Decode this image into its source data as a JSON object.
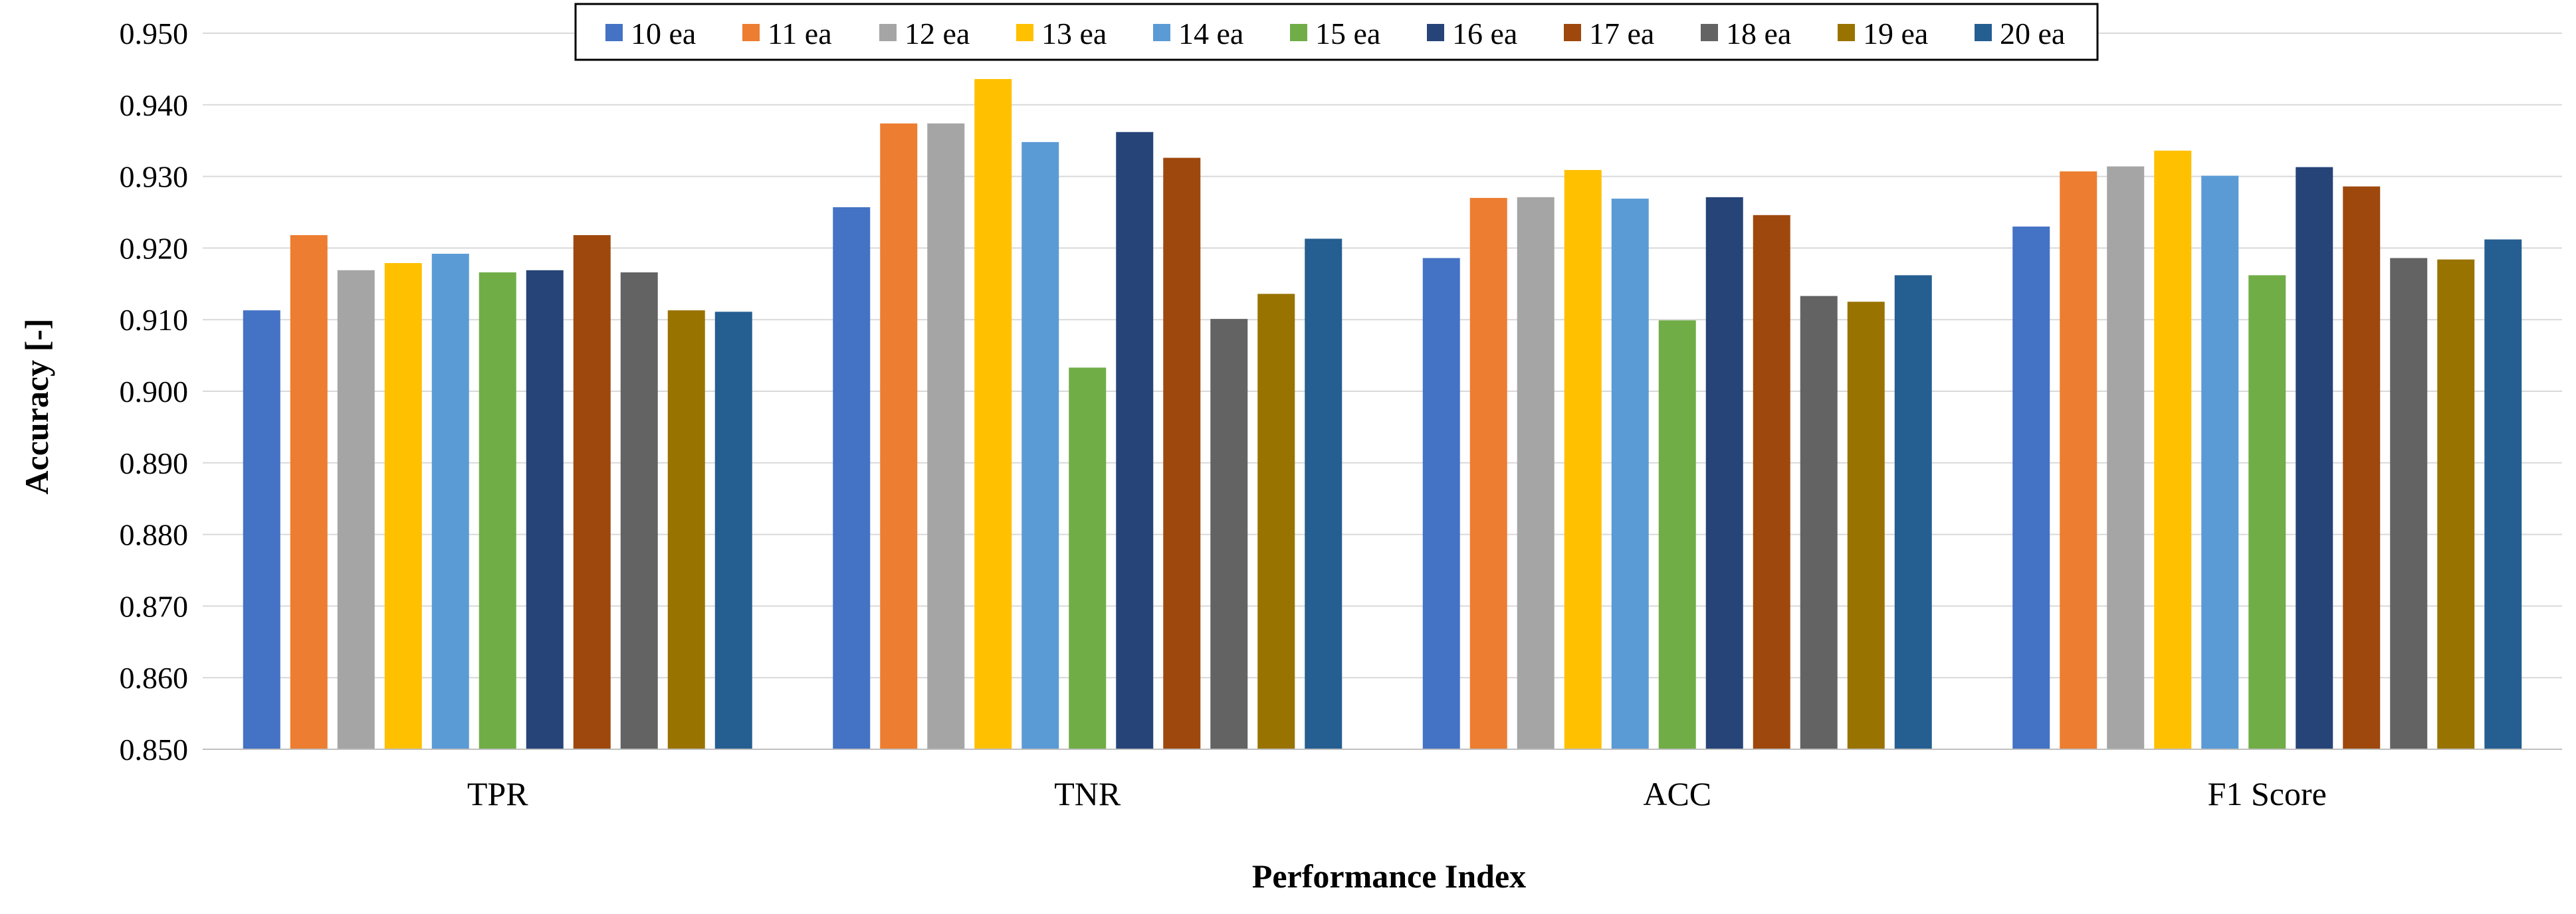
{
  "chart_data": {
    "type": "bar",
    "title": "",
    "xlabel": "Performance Index",
    "ylabel": "Accuracy [-]",
    "ylim": [
      0.85,
      0.95
    ],
    "ytick_step": 0.01,
    "ytick_format_decimals": 3,
    "grid": true,
    "legend_position": "top-center",
    "categories": [
      "TPR",
      "TNR",
      "ACC",
      "F1 Score"
    ],
    "series": [
      {
        "name": "10 ea",
        "color": "#4472C4",
        "values": [
          0.9113,
          0.9257,
          0.9186,
          0.923
        ]
      },
      {
        "name": "11 ea",
        "color": "#ED7D31",
        "values": [
          0.9218,
          0.9374,
          0.927,
          0.9307
        ]
      },
      {
        "name": "12 ea",
        "color": "#A5A5A5",
        "values": [
          0.9169,
          0.9374,
          0.9271,
          0.9314
        ]
      },
      {
        "name": "13 ea",
        "color": "#FFC000",
        "values": [
          0.9179,
          0.9436,
          0.9309,
          0.9336
        ]
      },
      {
        "name": "14 ea",
        "color": "#5B9BD5",
        "values": [
          0.9192,
          0.9348,
          0.9269,
          0.9301
        ]
      },
      {
        "name": "15 ea",
        "color": "#70AD47",
        "values": [
          0.9166,
          0.9033,
          0.9099,
          0.9162
        ]
      },
      {
        "name": "16 ea",
        "color": "#264478",
        "values": [
          0.9169,
          0.9362,
          0.9271,
          0.9313
        ]
      },
      {
        "name": "17 ea",
        "color": "#9E480E",
        "values": [
          0.9218,
          0.9326,
          0.9246,
          0.9286
        ]
      },
      {
        "name": "18 ea",
        "color": "#636363",
        "values": [
          0.9166,
          0.9101,
          0.9133,
          0.9186
        ]
      },
      {
        "name": "19 ea",
        "color": "#997300",
        "values": [
          0.9113,
          0.9136,
          0.9125,
          0.9184
        ]
      },
      {
        "name": "20 ea",
        "color": "#255E91",
        "values": [
          0.9111,
          0.9213,
          0.9162,
          0.9212
        ]
      }
    ]
  }
}
